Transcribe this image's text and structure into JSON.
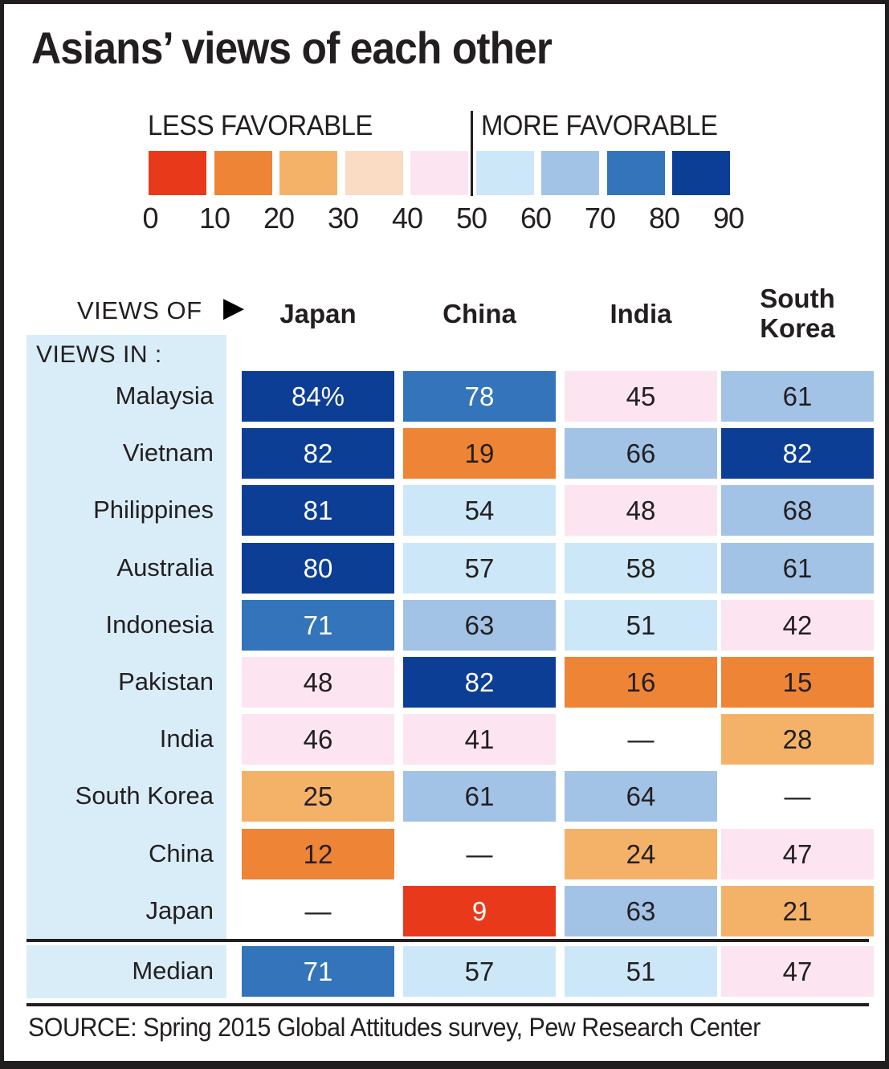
{
  "title": "Asians’ views of each other",
  "legend": {
    "less_label": "LESS FAVORABLE",
    "more_label": "MORE FAVORABLE",
    "ticks": [
      "0",
      "10",
      "20",
      "30",
      "40",
      "50",
      "60",
      "70",
      "80",
      "90"
    ],
    "colors": [
      "#e8391b",
      "#ee8435",
      "#f4b269",
      "#fadcc4",
      "#fce5f0",
      "#cce8f8",
      "#a2c3e6",
      "#3374ba",
      "#0d3e96"
    ]
  },
  "table": {
    "views_of_label": "VIEWS OF",
    "views_in_label": "VIEWS IN :",
    "columns": [
      "Japan",
      "China",
      "India",
      "South Korea"
    ],
    "rows": [
      {
        "label": "Malaysia",
        "values": [
          "84%",
          "78",
          "45",
          "61"
        ]
      },
      {
        "label": "Vietnam",
        "values": [
          "82",
          "19",
          "66",
          "82"
        ]
      },
      {
        "label": "Philippines",
        "values": [
          "81",
          "54",
          "48",
          "68"
        ]
      },
      {
        "label": "Australia",
        "values": [
          "80",
          "57",
          "58",
          "61"
        ]
      },
      {
        "label": "Indonesia",
        "values": [
          "71",
          "63",
          "51",
          "42"
        ]
      },
      {
        "label": "Pakistan",
        "values": [
          "48",
          "82",
          "16",
          "15"
        ]
      },
      {
        "label": "India",
        "values": [
          "46",
          "41",
          "—",
          "28"
        ]
      },
      {
        "label": "South Korea",
        "values": [
          "25",
          "61",
          "64",
          "—"
        ]
      },
      {
        "label": "China",
        "values": [
          "12",
          "—",
          "24",
          "47"
        ]
      },
      {
        "label": "Japan",
        "values": [
          "—",
          "9",
          "63",
          "21"
        ]
      }
    ],
    "median_row": {
      "label": "Median",
      "values": [
        "71",
        "57",
        "51",
        "47"
      ]
    }
  },
  "source": "SOURCE: Spring 2015 Global Attitudes survey, Pew Research Center",
  "colors": {
    "panel": "#d9edf9",
    "frame": "#221d1e",
    "text": "#231f20",
    "cell_text_light": "#ffffff"
  },
  "chart_data": {
    "type": "heatmap",
    "title": "Asians’ views of each other",
    "columns": [
      "Japan",
      "China",
      "India",
      "South Korea"
    ],
    "rows": [
      "Malaysia",
      "Vietnam",
      "Philippines",
      "Australia",
      "Indonesia",
      "Pakistan",
      "India",
      "South Korea",
      "China",
      "Japan",
      "Median"
    ],
    "values": [
      [
        84,
        78,
        45,
        61
      ],
      [
        82,
        19,
        66,
        82
      ],
      [
        81,
        54,
        48,
        68
      ],
      [
        80,
        57,
        58,
        61
      ],
      [
        71,
        63,
        51,
        42
      ],
      [
        48,
        82,
        16,
        15
      ],
      [
        46,
        41,
        null,
        28
      ],
      [
        25,
        61,
        64,
        null
      ],
      [
        12,
        null,
        24,
        47
      ],
      [
        null,
        9,
        63,
        21
      ],
      [
        71,
        57,
        51,
        47
      ]
    ],
    "scale": {
      "min": 0,
      "max": 90,
      "step": 10,
      "less_label": "LESS FAVORABLE",
      "more_label": "MORE FAVORABLE"
    },
    "unit": "percent favorable",
    "legend_position": "top"
  }
}
